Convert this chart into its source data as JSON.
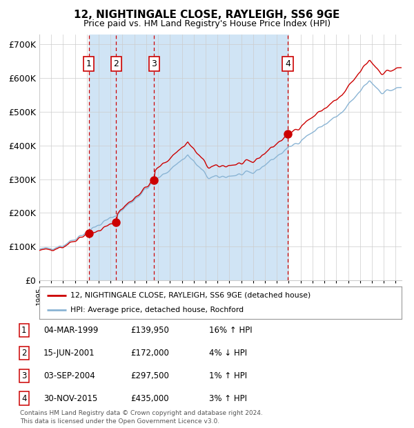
{
  "title": "12, NIGHTINGALE CLOSE, RAYLEIGH, SS6 9GE",
  "subtitle": "Price paid vs. HM Land Registry's House Price Index (HPI)",
  "ylim": [
    0,
    730000
  ],
  "yticks": [
    0,
    100000,
    200000,
    300000,
    400000,
    500000,
    600000,
    700000
  ],
  "ytick_labels": [
    "£0",
    "£100K",
    "£200K",
    "£300K",
    "£400K",
    "£500K",
    "£600K",
    "£700K"
  ],
  "xlim_start": 1995.0,
  "xlim_end": 2025.5,
  "sale_dates": [
    1999.17,
    2001.46,
    2004.67,
    2015.92
  ],
  "sale_prices": [
    139950,
    172000,
    297500,
    435000
  ],
  "sale_labels": [
    "1",
    "2",
    "3",
    "4"
  ],
  "hpi_line_color": "#8ab4d4",
  "price_line_color": "#cc0000",
  "dot_color": "#cc0000",
  "dashed_line_color": "#cc0000",
  "span_color": "#d0e4f5",
  "plot_bg_color": "#ffffff",
  "grid_color": "#cccccc",
  "legend_line1": "12, NIGHTINGALE CLOSE, RAYLEIGH, SS6 9GE (detached house)",
  "legend_line2": "HPI: Average price, detached house, Rochford",
  "table_entries": [
    [
      "1",
      "04-MAR-1999",
      "£139,950",
      "16% ↑ HPI"
    ],
    [
      "2",
      "15-JUN-2001",
      "£172,000",
      "4% ↓ HPI"
    ],
    [
      "3",
      "03-SEP-2004",
      "£297,500",
      "1% ↑ HPI"
    ],
    [
      "4",
      "30-NOV-2015",
      "£435,000",
      "3% ↑ HPI"
    ]
  ],
  "footer": "Contains HM Land Registry data © Crown copyright and database right 2024.\nThis data is licensed under the Open Government Licence v3.0."
}
